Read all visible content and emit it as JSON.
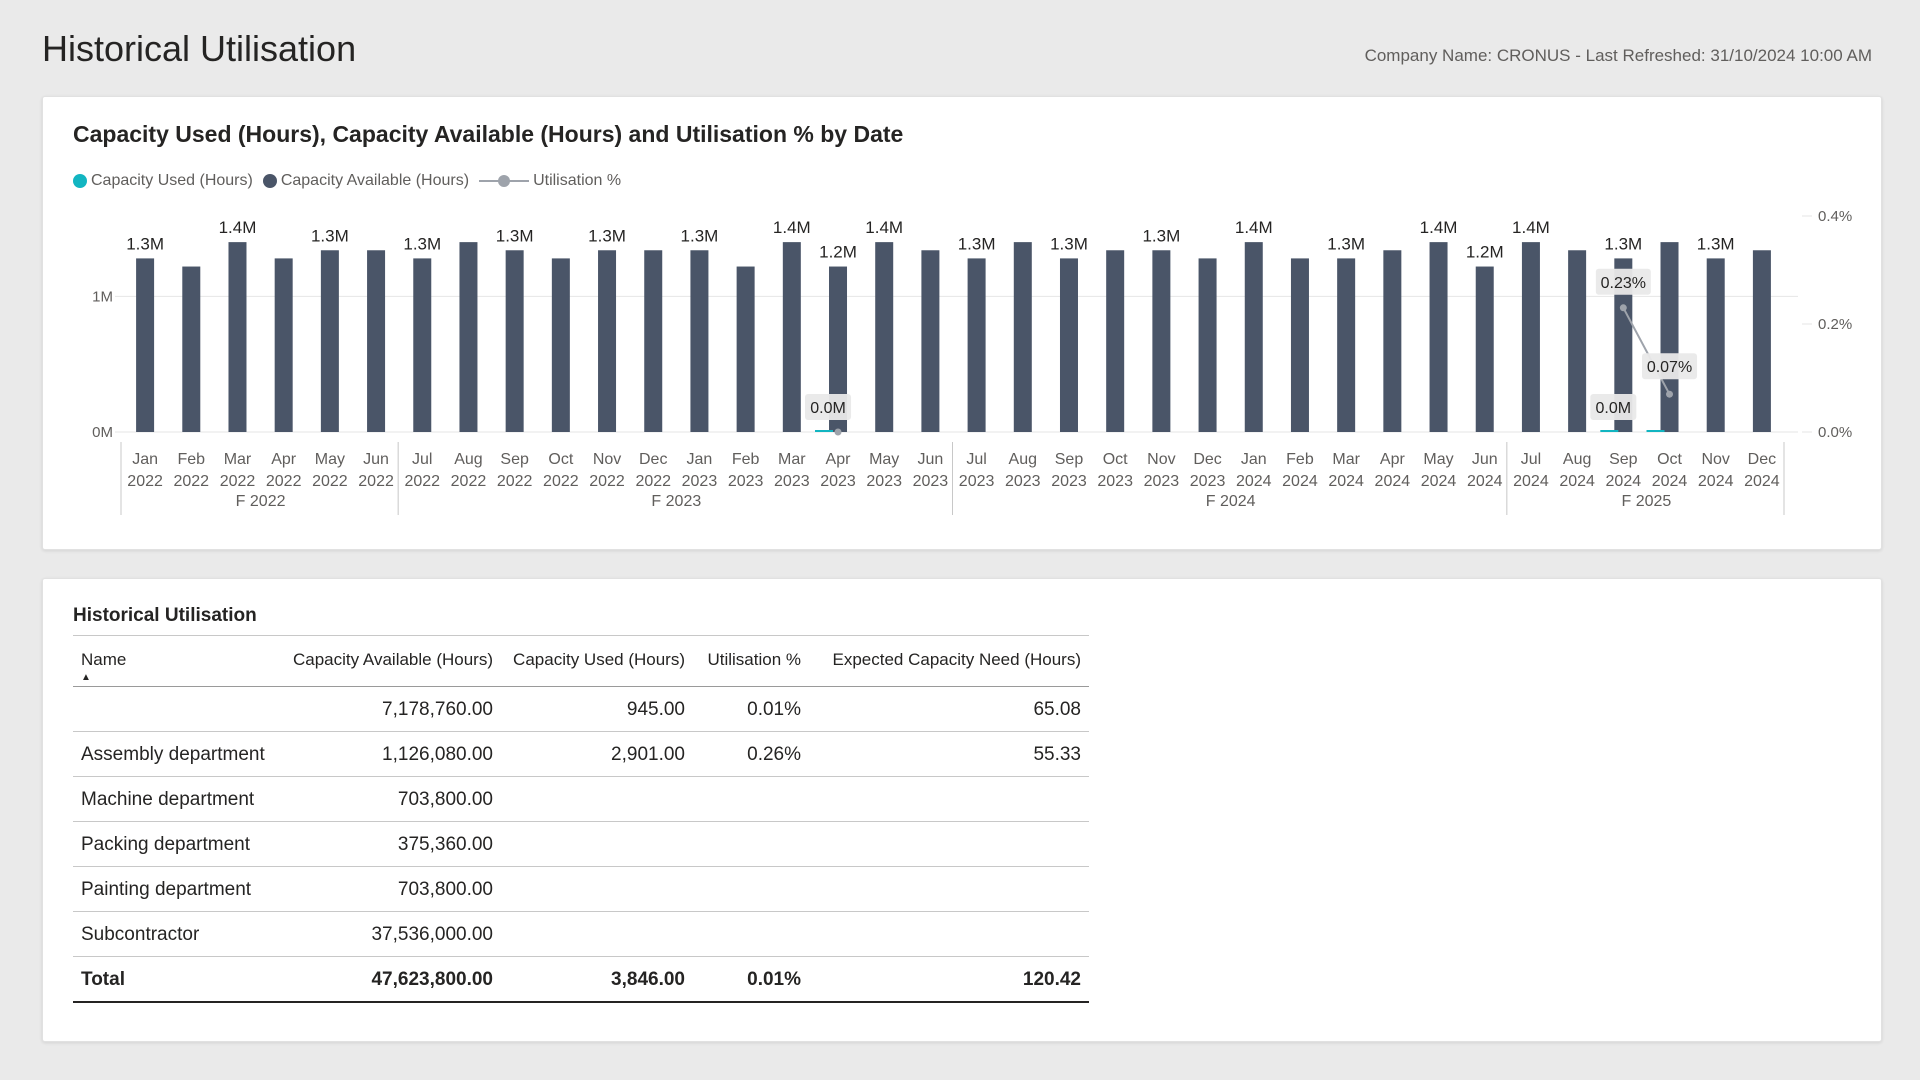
{
  "page": {
    "title": "Historical Utilisation",
    "company_name_label": "Company Name: CRONUS - Last Refreshed: 31/10/2024 10:00 AM"
  },
  "colors": {
    "used": "#12b5c1",
    "available": "#4a5568",
    "utilisation": "#9ea3ab",
    "gridline": "#e6e6e6"
  },
  "chart_data": {
    "type": "bar",
    "title": "Capacity Used (Hours), Capacity Available (Hours) and Utilisation % by Date",
    "legend": [
      "Capacity Used (Hours)",
      "Capacity Available (Hours)",
      "Utilisation %"
    ],
    "legend_placement": "top-left",
    "categories": [
      [
        "Jan",
        "2022"
      ],
      [
        "Feb",
        "2022"
      ],
      [
        "Mar",
        "2022"
      ],
      [
        "Apr",
        "2022"
      ],
      [
        "May",
        "2022"
      ],
      [
        "Jun",
        "2022"
      ],
      [
        "Jul",
        "2022"
      ],
      [
        "Aug",
        "2022"
      ],
      [
        "Sep",
        "2022"
      ],
      [
        "Oct",
        "2022"
      ],
      [
        "Nov",
        "2022"
      ],
      [
        "Dec",
        "2022"
      ],
      [
        "Jan",
        "2023"
      ],
      [
        "Feb",
        "2023"
      ],
      [
        "Mar",
        "2023"
      ],
      [
        "Apr",
        "2023"
      ],
      [
        "May",
        "2023"
      ],
      [
        "Jun",
        "2023"
      ],
      [
        "Jul",
        "2023"
      ],
      [
        "Aug",
        "2023"
      ],
      [
        "Sep",
        "2023"
      ],
      [
        "Oct",
        "2023"
      ],
      [
        "Nov",
        "2023"
      ],
      [
        "Dec",
        "2023"
      ],
      [
        "Jan",
        "2024"
      ],
      [
        "Feb",
        "2024"
      ],
      [
        "Mar",
        "2024"
      ],
      [
        "Apr",
        "2024"
      ],
      [
        "May",
        "2024"
      ],
      [
        "Jun",
        "2024"
      ],
      [
        "Jul",
        "2024"
      ],
      [
        "Aug",
        "2024"
      ],
      [
        "Sep",
        "2024"
      ],
      [
        "Oct",
        "2024"
      ],
      [
        "Nov",
        "2024"
      ],
      [
        "Dec",
        "2024"
      ]
    ],
    "fiscal_groups": [
      {
        "label": "F 2022",
        "start": 0,
        "end": 5
      },
      {
        "label": "F 2023",
        "start": 6,
        "end": 17
      },
      {
        "label": "F 2024",
        "start": 18,
        "end": 29
      },
      {
        "label": "F 2025",
        "start": 30,
        "end": 35
      }
    ],
    "series": [
      {
        "name": "Capacity Available (Hours)",
        "axis": "left",
        "values": [
          1.28,
          1.22,
          1.4,
          1.28,
          1.34,
          1.34,
          1.28,
          1.4,
          1.34,
          1.28,
          1.34,
          1.34,
          1.34,
          1.22,
          1.4,
          1.22,
          1.4,
          1.34,
          1.28,
          1.4,
          1.28,
          1.34,
          1.34,
          1.28,
          1.4,
          1.28,
          1.28,
          1.34,
          1.4,
          1.22,
          1.4,
          1.34,
          1.28,
          1.4,
          1.28,
          1.34
        ],
        "data_labels": [
          {
            "index": 0,
            "text": "1.3M"
          },
          {
            "index": 2,
            "text": "1.4M"
          },
          {
            "index": 4,
            "text": "1.3M"
          },
          {
            "index": 6,
            "text": "1.3M"
          },
          {
            "index": 8,
            "text": "1.3M"
          },
          {
            "index": 10,
            "text": "1.3M"
          },
          {
            "index": 12,
            "text": "1.3M"
          },
          {
            "index": 14,
            "text": "1.4M"
          },
          {
            "index": 15,
            "text": "1.2M"
          },
          {
            "index": 16,
            "text": "1.4M"
          },
          {
            "index": 18,
            "text": "1.3M"
          },
          {
            "index": 20,
            "text": "1.3M"
          },
          {
            "index": 22,
            "text": "1.3M"
          },
          {
            "index": 24,
            "text": "1.4M"
          },
          {
            "index": 26,
            "text": "1.3M"
          },
          {
            "index": 28,
            "text": "1.4M"
          },
          {
            "index": 29,
            "text": "1.2M"
          },
          {
            "index": 30,
            "text": "1.4M"
          },
          {
            "index": 32,
            "text": "1.3M"
          },
          {
            "index": 34,
            "text": "1.3M"
          }
        ]
      },
      {
        "name": "Capacity Used (Hours)",
        "axis": "left",
        "values": [
          0,
          0,
          0,
          0,
          0,
          0,
          0,
          0,
          0,
          0,
          0,
          0,
          0,
          0,
          0,
          0.0009,
          0,
          0,
          0,
          0,
          0,
          0,
          0,
          0,
          0,
          0,
          0,
          0,
          0,
          0,
          0,
          0,
          0.0029,
          0.0009,
          0,
          0
        ],
        "data_labels": [
          {
            "index": 15,
            "text": "0.0M"
          },
          {
            "index": 32,
            "text": "0.0M"
          }
        ]
      },
      {
        "name": "Utilisation %",
        "axis": "right",
        "points": [
          {
            "index": 15,
            "value": 0.0,
            "label": ""
          },
          {
            "index": 32,
            "value": 0.23,
            "label": "0.23%"
          },
          {
            "index": 33,
            "value": 0.07,
            "label": "0.07%"
          }
        ]
      }
    ],
    "y_left": {
      "min": 0,
      "max": 1.6,
      "unit": "M",
      "ticks": [
        {
          "value": 0,
          "label": "0M"
        },
        {
          "value": 1,
          "label": "1M"
        }
      ]
    },
    "y_right": {
      "min": 0,
      "max": 0.4,
      "ticks": [
        {
          "value": 0,
          "label": "0.0%"
        },
        {
          "value": 0.2,
          "label": "0.2%"
        },
        {
          "value": 0.4,
          "label": "0.4%"
        }
      ]
    },
    "grid": true
  },
  "table": {
    "title": "Historical Utilisation",
    "columns": [
      "Name",
      "Capacity Available (Hours)",
      "Capacity Used (Hours)",
      "Utilisation %",
      "Expected Capacity Need (Hours)"
    ],
    "rows": [
      {
        "name": "",
        "available": "7,178,760.00",
        "used": "945.00",
        "util": "0.01%",
        "need": "65.08"
      },
      {
        "name": "Assembly department",
        "available": "1,126,080.00",
        "used": "2,901.00",
        "util": "0.26%",
        "need": "55.33"
      },
      {
        "name": "Machine department",
        "available": "703,800.00",
        "used": "",
        "util": "",
        "need": ""
      },
      {
        "name": "Packing department",
        "available": "375,360.00",
        "used": "",
        "util": "",
        "need": ""
      },
      {
        "name": "Painting department",
        "available": "703,800.00",
        "used": "",
        "util": "",
        "need": ""
      },
      {
        "name": "Subcontractor",
        "available": "37,536,000.00",
        "used": "",
        "util": "",
        "need": ""
      }
    ],
    "total": {
      "name": "Total",
      "available": "47,623,800.00",
      "used": "3,846.00",
      "util": "0.01%",
      "need": "120.42"
    }
  }
}
